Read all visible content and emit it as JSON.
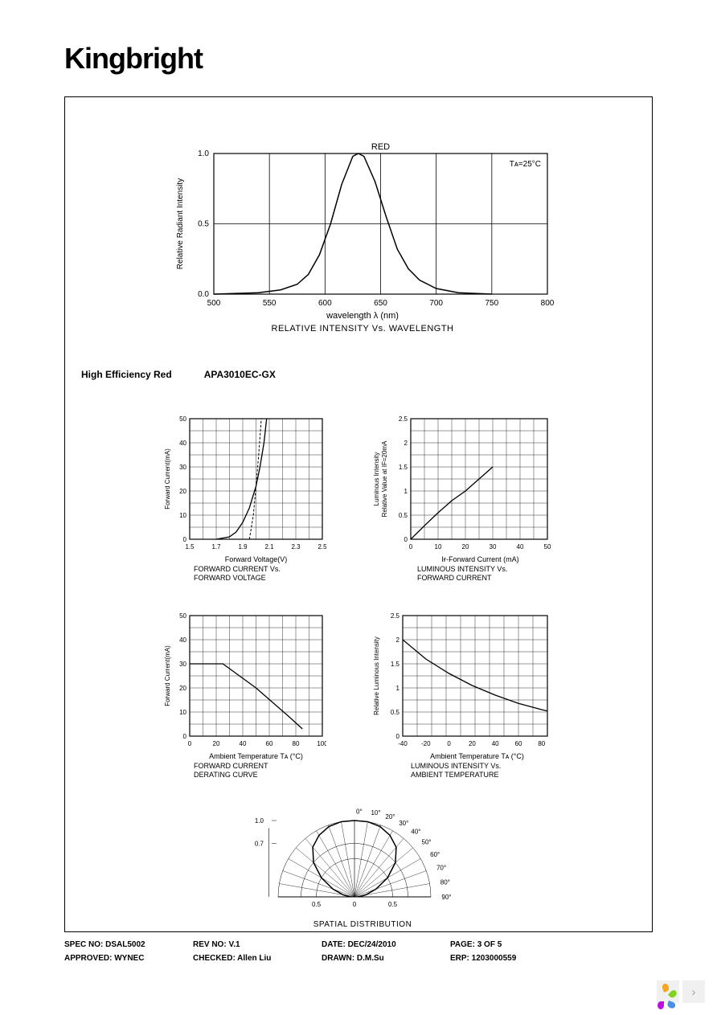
{
  "logo": "Kingbright",
  "topChart": {
    "type": "line",
    "title": "RED",
    "annotation": "Tᴀ=25°C",
    "xlabel": "wavelength λ (nm)",
    "caption": "RELATIVE  INTENSITY  Vs.  WAVELENGTH",
    "ylabel": "Relative Radiant Intensity",
    "xlim": [
      500,
      800
    ],
    "ylim": [
      0,
      1.0
    ],
    "xticks": [
      500,
      550,
      600,
      650,
      700,
      750,
      800
    ],
    "yticks": [
      0,
      0.5,
      1.0
    ],
    "curve": [
      [
        500,
        0
      ],
      [
        540,
        0.01
      ],
      [
        560,
        0.03
      ],
      [
        575,
        0.07
      ],
      [
        585,
        0.14
      ],
      [
        595,
        0.28
      ],
      [
        605,
        0.5
      ],
      [
        615,
        0.78
      ],
      [
        625,
        0.98
      ],
      [
        630,
        1.0
      ],
      [
        635,
        0.98
      ],
      [
        645,
        0.8
      ],
      [
        655,
        0.55
      ],
      [
        665,
        0.32
      ],
      [
        675,
        0.18
      ],
      [
        685,
        0.1
      ],
      [
        700,
        0.04
      ],
      [
        720,
        0.01
      ],
      [
        750,
        0
      ]
    ],
    "line_color": "#000000",
    "grid_color": "#000000",
    "background_color": "#ffffff",
    "font_size": 10
  },
  "sectionHeader": {
    "left": "High Efficiency Red",
    "right": "APA3010EC-GX"
  },
  "chartA": {
    "type": "line",
    "ylabel": "Forward Current(mA)",
    "xlabel": "Forward Voltage(V)",
    "caption1": "FORWARD  CURRENT  Vs.",
    "caption2": "FORWARD  VOLTAGE",
    "xlim": [
      1.5,
      2.5
    ],
    "ylim": [
      0,
      50
    ],
    "xticks": [
      1.5,
      1.7,
      1.9,
      2.1,
      2.3,
      2.5
    ],
    "yticks": [
      0,
      10,
      20,
      30,
      40,
      50
    ],
    "grid_xn": 10,
    "grid_yn": 10,
    "curve_solid": [
      [
        1.7,
        0
      ],
      [
        1.8,
        1
      ],
      [
        1.85,
        3
      ],
      [
        1.9,
        7
      ],
      [
        1.95,
        13
      ],
      [
        2.0,
        22
      ],
      [
        2.03,
        30
      ],
      [
        2.06,
        40
      ],
      [
        2.08,
        50
      ]
    ],
    "curve_dash": [
      [
        1.95,
        0
      ],
      [
        1.98,
        10
      ],
      [
        2.0,
        22
      ],
      [
        2.02,
        35
      ],
      [
        2.04,
        50
      ]
    ],
    "line_color": "#000000",
    "grid_color": "#000000"
  },
  "chartB": {
    "type": "line",
    "ylabel1": "Luminous Intensity",
    "ylabel2": "Relative Value at IF=20mA",
    "xlabel": "Iғ-Forward Current (mA)",
    "caption1": "LUMINOUS  INTENSITY  Vs.",
    "caption2": "FORWARD  CURRENT",
    "xlim": [
      0,
      50
    ],
    "ylim": [
      0,
      2.5
    ],
    "xticks": [
      0,
      10,
      20,
      30,
      40,
      50
    ],
    "yticks": [
      0,
      0.5,
      1.0,
      1.5,
      2.0,
      2.5
    ],
    "grid_xn": 10,
    "grid_yn": 10,
    "curve": [
      [
        0,
        0
      ],
      [
        5,
        0.28
      ],
      [
        10,
        0.55
      ],
      [
        15,
        0.8
      ],
      [
        20,
        1.0
      ],
      [
        25,
        1.25
      ],
      [
        30,
        1.5
      ]
    ],
    "line_color": "#000000",
    "grid_color": "#000000"
  },
  "chartC": {
    "type": "line",
    "ylabel": "Forward Current(mA)",
    "xlabel": "Ambient Temperature Tᴀ (°C)",
    "caption1": "FORWARD  CURRENT",
    "caption2": "DERATING  CURVE",
    "xlim": [
      0,
      100
    ],
    "ylim": [
      0,
      50
    ],
    "xticks": [
      0,
      20,
      40,
      60,
      80,
      100
    ],
    "yticks": [
      0,
      10,
      20,
      30,
      40,
      50
    ],
    "grid_xn": 10,
    "grid_yn": 10,
    "curve": [
      [
        0,
        30
      ],
      [
        25,
        30
      ],
      [
        50,
        20
      ],
      [
        75,
        8
      ],
      [
        85,
        3
      ]
    ],
    "line_color": "#000000",
    "grid_color": "#000000"
  },
  "chartD": {
    "type": "line",
    "ylabel": "Relative Luminous Intensity",
    "xlabel": "Ambient Temperature Tᴀ (°C)",
    "caption1": "LUMINOUS  INTENSITY  Vs.",
    "caption2": "AMBIENT  TEMPERATURE",
    "xlim": [
      -40,
      85
    ],
    "ylim": [
      0,
      2.5
    ],
    "xticks": [
      -40,
      -20,
      0,
      20,
      40,
      60,
      80
    ],
    "yticks": [
      0,
      0.5,
      1.0,
      1.5,
      2.0,
      2.5
    ],
    "grid_xn": 10,
    "grid_yn": 10,
    "curve": [
      [
        -40,
        2.0
      ],
      [
        -20,
        1.6
      ],
      [
        0,
        1.3
      ],
      [
        20,
        1.05
      ],
      [
        40,
        0.85
      ],
      [
        60,
        0.68
      ],
      [
        80,
        0.55
      ],
      [
        85,
        0.52
      ]
    ],
    "line_color": "#000000",
    "grid_color": "#000000"
  },
  "polarChart": {
    "type": "polar",
    "caption": "SPATIAL  DISTRIBUTION",
    "radial_ticks": [
      0.7,
      1.0
    ],
    "angle_ticks": [
      0,
      10,
      20,
      30,
      40,
      50,
      60,
      70,
      80,
      90
    ],
    "xticks": [
      0,
      0.5
    ],
    "line_color": "#000000",
    "grid_color": "#000000",
    "curve_angles": [
      -90,
      -80,
      -70,
      -60,
      -50,
      -40,
      -30,
      -20,
      -10,
      0,
      10,
      20,
      30,
      40,
      50,
      60,
      70,
      80,
      90
    ],
    "curve_values": [
      0.05,
      0.15,
      0.3,
      0.5,
      0.7,
      0.85,
      0.93,
      0.98,
      1.0,
      1.0,
      1.0,
      0.98,
      0.93,
      0.85,
      0.7,
      0.5,
      0.3,
      0.15,
      0.05
    ]
  },
  "footer": {
    "row1": {
      "spec": "SPEC NO: DSAL5002",
      "rev": "REV NO: V.1",
      "date": "DATE: DEC/24/2010",
      "page": "PAGE: 3  OF  5"
    },
    "row2": {
      "approved": "APPROVED: WYNEC",
      "checked": "CHECKED: Allen Liu",
      "drawn": "DRAWN: D.M.Su",
      "erp": "ERP: 1203000559"
    }
  },
  "colors": {
    "text": "#000000",
    "border": "#000000",
    "background": "#ffffff",
    "petal1": "#f5a623",
    "petal2": "#7ed321",
    "petal3": "#4a90e2",
    "petal4": "#bd10e0"
  }
}
